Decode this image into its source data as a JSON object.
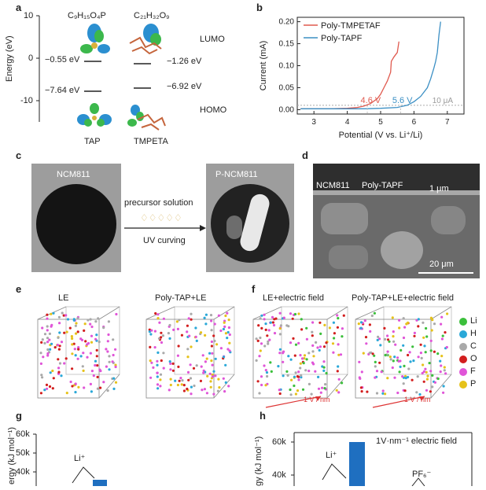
{
  "panel_labels": {
    "a": "a",
    "b": "b",
    "c": "c",
    "d": "d",
    "e": "e",
    "f": "f",
    "g": "g",
    "h": "h"
  },
  "panel_a": {
    "ylabel": "Energy (eV)",
    "yticks": [
      "10",
      "0",
      "-10"
    ],
    "formula_left": "C₉H₁₅O₄P",
    "formula_right": "C₂₁H₃₂O₉",
    "lumo_label": "LUMO",
    "homo_label": "HOMO",
    "lumo_left": "−0.55 eV",
    "lumo_right": "−1.26 eV",
    "homo_left": "−7.64 eV",
    "homo_right": "−6.92 eV",
    "mol_left": "TAP",
    "mol_right": "TMPETA"
  },
  "chart_data": {
    "type": "line",
    "xlabel": "Potential (V vs. Li⁺/Li)",
    "ylabel": "Current (mA)",
    "xlim": [
      2.5,
      7.5
    ],
    "ylim": [
      -0.01,
      0.21
    ],
    "xticks": [
      "3",
      "4",
      "5",
      "6",
      "7"
    ],
    "yticks": [
      "0.00",
      "0.05",
      "0.10",
      "0.15",
      "0.20"
    ],
    "series": [
      {
        "name": "Poly-TMPETAF",
        "color": "#e05a4f",
        "x": [
          2.6,
          3.5,
          4.0,
          4.3,
          4.5,
          4.7,
          4.9,
          5.0,
          5.1,
          5.2,
          5.3,
          5.32,
          5.4,
          5.5,
          5.55
        ],
        "y": [
          0.002,
          0.002,
          0.003,
          0.005,
          0.008,
          0.014,
          0.025,
          0.035,
          0.05,
          0.065,
          0.085,
          0.11,
          0.12,
          0.13,
          0.155
        ]
      },
      {
        "name": "Poly-TAPF",
        "color": "#3b8fc4",
        "x": [
          2.6,
          3.5,
          4.5,
          5.0,
          5.5,
          5.8,
          6.0,
          6.2,
          6.4,
          6.5,
          6.6,
          6.65,
          6.7,
          6.75,
          6.8
        ],
        "y": [
          0.002,
          0.002,
          0.002,
          0.003,
          0.005,
          0.01,
          0.018,
          0.03,
          0.05,
          0.07,
          0.095,
          0.11,
          0.13,
          0.17,
          0.2
        ]
      }
    ],
    "annotations": [
      {
        "text": "4.6 V",
        "color": "#e05a4f"
      },
      {
        "text": "5.6 V",
        "color": "#3b8fc4"
      },
      {
        "text": "10 μA",
        "color": "#9a9a9a"
      }
    ]
  },
  "panel_c": {
    "left_title": "NCM811",
    "right_title": "P-NCM811",
    "arrow_top": "precursor solution",
    "arrow_bottom": "UV curving"
  },
  "panel_d": {
    "label_ncm": "NCM811",
    "label_poly": "Poly-TAPF",
    "scale_small": "1 μm",
    "scale_big": "20 μm"
  },
  "panel_e": {
    "left": "LE",
    "right": "Poly-TAP+LE"
  },
  "panel_f": {
    "left": "LE+electric field",
    "right": "Poly-TAP+LE+electric field",
    "field_label": "1 V / nm"
  },
  "legend_atoms": [
    {
      "name": "Li",
      "color": "#3bbf3b"
    },
    {
      "name": "H",
      "color": "#2aa8d8"
    },
    {
      "name": "C",
      "color": "#a9a9a9"
    },
    {
      "name": "O",
      "color": "#d21e1e"
    },
    {
      "name": "F",
      "color": "#e055d8"
    },
    {
      "name": "P",
      "color": "#e6c21a"
    }
  ],
  "panel_g": {
    "ylabel": "ergy (kJ mol⁻¹)",
    "yticks": [
      "60k",
      "50k",
      "40k"
    ],
    "ion": "Li⁺"
  },
  "panel_h": {
    "ylabel": "gy (kJ mol⁻¹)",
    "yticks": [
      "60k",
      "40k"
    ],
    "ion_left": "Li⁺",
    "ion_right": "PF₆⁻",
    "field": "1V·nm⁻¹ electric field"
  }
}
